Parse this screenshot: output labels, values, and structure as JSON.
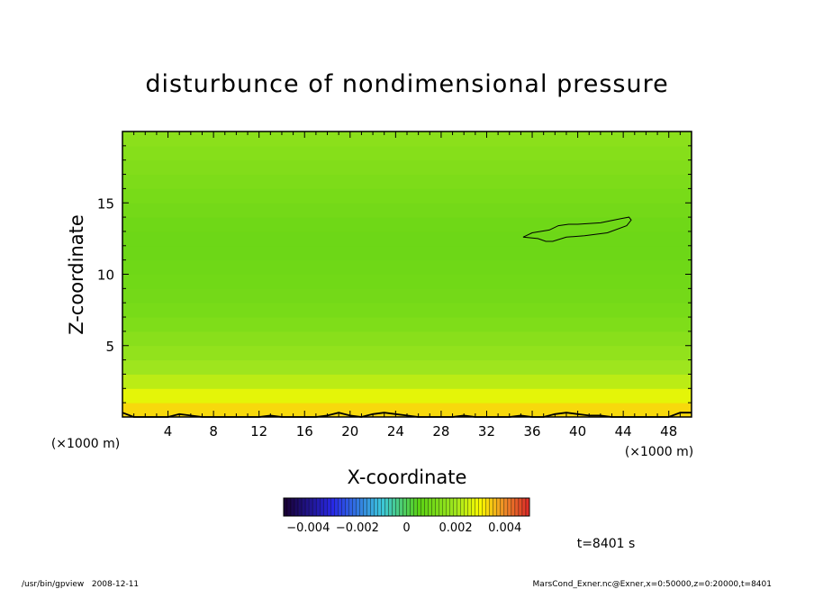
{
  "chart_data": {
    "type": "heatmap",
    "title": "disturbunce of nondimensional pressure",
    "xlabel": "X-coordinate",
    "ylabel": "Z-coordinate",
    "x_unit": "(×1000 m)",
    "y_unit": "(×1000 m)",
    "xlim": [
      0,
      50
    ],
    "ylim": [
      0,
      20
    ],
    "x_ticks": [
      4,
      8,
      12,
      16,
      20,
      24,
      28,
      32,
      36,
      40,
      44,
      48
    ],
    "y_ticks": [
      5,
      10,
      15
    ],
    "colorbar": {
      "range": [
        -0.005,
        0.005
      ],
      "ticks": [
        -0.004,
        -0.002,
        0,
        0.002,
        0.004
      ],
      "tick_labels": [
        "−0.004",
        "−0.002",
        "0",
        "0.002",
        "0.004"
      ]
    },
    "field_profile": {
      "z": [
        0,
        1,
        2,
        3,
        4,
        5,
        6,
        7,
        8,
        9,
        10,
        11,
        12,
        13,
        14,
        15,
        16,
        17,
        18,
        19,
        20
      ],
      "value": [
        0.0036,
        0.003,
        0.0025,
        0.0021,
        0.0018,
        0.0016,
        0.0014,
        0.0012,
        0.0011,
        0.001,
        0.001,
        0.0009,
        0.0009,
        0.0009,
        0.001,
        0.0011,
        0.0012,
        0.0013,
        0.0014,
        0.0015,
        0.0016
      ]
    },
    "contours": [
      {
        "name": "closed-contour",
        "x": [
          35.2,
          36.0,
          37.5,
          38.3,
          39.2,
          40.0,
          42.0,
          43.8,
          44.5,
          44.7,
          44.3,
          42.6,
          40.6,
          39.0,
          37.8,
          37.2,
          36.5,
          35.2
        ],
        "y": [
          12.6,
          12.9,
          13.1,
          13.4,
          13.5,
          13.5,
          13.6,
          13.9,
          14.0,
          13.8,
          13.4,
          12.9,
          12.7,
          12.6,
          12.3,
          12.3,
          12.5,
          12.6
        ]
      },
      {
        "name": "near-surface-contour",
        "x": [
          0,
          1,
          2,
          3,
          4,
          5,
          6,
          7,
          8,
          9,
          10,
          11,
          12,
          13,
          14,
          15,
          16,
          17,
          18,
          19,
          20,
          21,
          22,
          23,
          24,
          25,
          26,
          27,
          28,
          29,
          30,
          31,
          32,
          33,
          34,
          35,
          36,
          37,
          38,
          39,
          40,
          41,
          42,
          43,
          44,
          45,
          46,
          47,
          48,
          49,
          50
        ],
        "y": [
          0.3,
          0.0,
          0.0,
          0.0,
          0.0,
          0.2,
          0.1,
          0.0,
          0.0,
          0.0,
          0.0,
          0.0,
          0.0,
          0.1,
          0.0,
          0.0,
          0.0,
          0.0,
          0.1,
          0.3,
          0.1,
          0.0,
          0.2,
          0.3,
          0.2,
          0.1,
          0.0,
          0.0,
          0.0,
          0.0,
          0.1,
          0.0,
          0.0,
          0.0,
          0.0,
          0.1,
          0.0,
          0.0,
          0.2,
          0.3,
          0.2,
          0.1,
          0.1,
          0.0,
          0.0,
          0.0,
          0.0,
          0.0,
          0.0,
          0.3,
          0.3
        ]
      }
    ]
  },
  "annotations": {
    "time": "t=8401 s",
    "footer_left": "/usr/bin/gpview   2008-12-11",
    "footer_right": "MarsCond_Exner.nc@Exner,x=0:50000,z=0:20000,t=8401"
  }
}
